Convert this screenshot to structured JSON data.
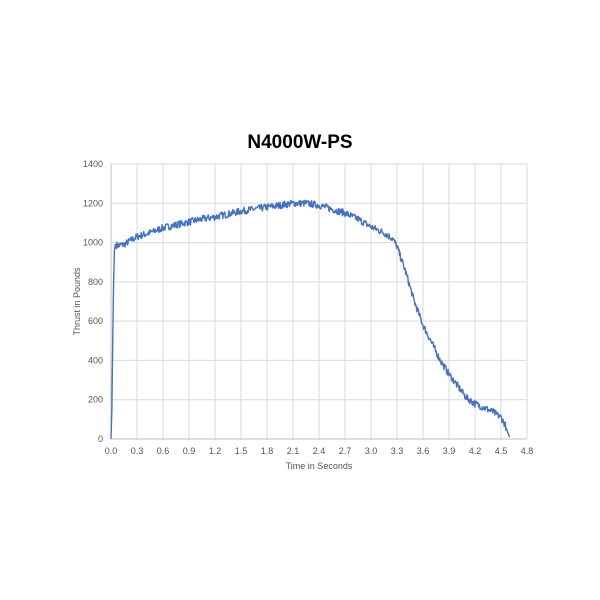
{
  "chart_data": {
    "type": "line",
    "title": "N4000W-PS",
    "xlabel": "Time in Seconds",
    "ylabel": "Thrust in Pounds",
    "xlim": [
      0,
      4.8
    ],
    "ylim": [
      0,
      1400
    ],
    "x_ticks": [
      "0.0",
      "0.3",
      "0.6",
      "0.9",
      "1.2",
      "1.5",
      "1.8",
      "2.1",
      "2.4",
      "2.7",
      "3.0",
      "3.3",
      "3.6",
      "3.9",
      "4.2",
      "4.5",
      "4.8"
    ],
    "y_ticks": [
      "0",
      "200",
      "400",
      "600",
      "800",
      "1000",
      "1200",
      "1400"
    ],
    "grid": true,
    "legend": "none",
    "series": [
      {
        "color": "#4472C4",
        "x": [
          0.0,
          0.01,
          0.02,
          0.03,
          0.04,
          0.05,
          0.08,
          0.15,
          0.3,
          0.45,
          0.6,
          0.75,
          0.9,
          1.05,
          1.2,
          1.35,
          1.5,
          1.65,
          1.8,
          1.95,
          2.1,
          2.25,
          2.4,
          2.55,
          2.7,
          2.85,
          3.0,
          3.15,
          3.25,
          3.3,
          3.4,
          3.5,
          3.6,
          3.7,
          3.8,
          3.9,
          4.0,
          4.1,
          4.2,
          4.3,
          4.4,
          4.5,
          4.55,
          4.58,
          4.6
        ],
        "y": [
          0,
          150,
          500,
          800,
          960,
          990,
          985,
          990,
          1030,
          1050,
          1075,
          1090,
          1105,
          1120,
          1130,
          1145,
          1160,
          1170,
          1180,
          1190,
          1200,
          1200,
          1190,
          1170,
          1150,
          1120,
          1080,
          1050,
          1020,
          980,
          850,
          700,
          580,
          490,
          400,
          330,
          270,
          210,
          180,
          160,
          140,
          110,
          70,
          30,
          10
        ]
      }
    ]
  }
}
